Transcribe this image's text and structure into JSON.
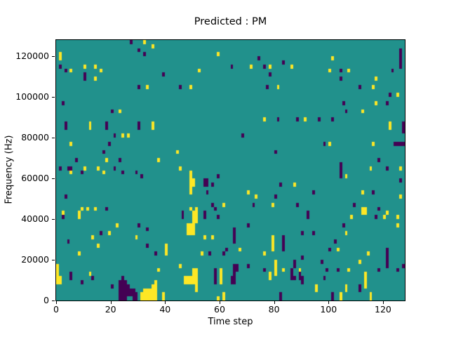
{
  "figure": {
    "title": "Predicted : PM",
    "xlabel": "Time step",
    "ylabel": "Frequency (Hz)"
  },
  "chart_data": {
    "type": "heatmap",
    "title": "Predicted : PM",
    "xlabel": "Time step",
    "ylabel": "Frequency (Hz)",
    "x_range": [
      0,
      128
    ],
    "y_range_hz": [
      0,
      128000
    ],
    "x_ticks": [
      0,
      20,
      40,
      60,
      80,
      100,
      120
    ],
    "y_ticks": [
      0,
      20000,
      40000,
      60000,
      80000,
      100000,
      120000
    ],
    "grid_cols": 128,
    "grid_rows": 64,
    "hz_per_row": 2000,
    "grid": false,
    "legend": "none",
    "colormap": "viridis",
    "colors": {
      "mid": "#21918c",
      "high": "#fde725",
      "low": "#440154"
    },
    "value_meaning": {
      "low": 0,
      "mid": 0.5,
      "high": 1
    },
    "cells_high": [
      [
        1,
        60
      ],
      [
        1,
        59
      ],
      [
        10,
        57
      ],
      [
        14,
        57
      ],
      [
        5,
        56
      ],
      [
        16,
        56
      ],
      [
        14,
        54
      ],
      [
        23,
        46
      ],
      [
        12,
        43
      ],
      [
        32,
        63
      ],
      [
        35,
        62
      ],
      [
        59,
        60
      ],
      [
        52,
        56
      ],
      [
        33,
        52
      ],
      [
        49,
        52
      ],
      [
        35,
        43
      ],
      [
        71,
        57
      ],
      [
        78,
        57
      ],
      [
        86,
        57
      ],
      [
        81,
        52
      ],
      [
        76,
        44
      ],
      [
        91,
        44
      ],
      [
        101,
        59
      ],
      [
        100,
        56
      ],
      [
        107,
        56
      ],
      [
        117,
        54
      ],
      [
        116,
        52
      ],
      [
        125,
        50
      ],
      [
        117,
        48
      ],
      [
        112,
        46
      ],
      [
        122,
        43
      ],
      [
        12,
        42
      ],
      [
        24,
        40
      ],
      [
        26,
        40
      ],
      [
        5,
        38
      ],
      [
        18,
        34
      ],
      [
        10,
        32
      ],
      [
        15,
        32
      ],
      [
        5,
        31
      ],
      [
        17,
        31
      ],
      [
        9,
        22
      ],
      [
        11,
        22
      ],
      [
        14,
        22
      ],
      [
        35,
        42
      ],
      [
        44,
        36
      ],
      [
        37,
        34
      ],
      [
        45,
        32
      ],
      [
        49,
        31
      ],
      [
        49,
        30
      ],
      [
        49,
        29
      ],
      [
        50,
        29
      ],
      [
        49,
        28
      ],
      [
        50,
        28
      ],
      [
        49,
        27
      ],
      [
        49,
        26
      ],
      [
        61,
        23
      ],
      [
        49,
        22
      ],
      [
        51,
        22
      ],
      [
        87,
        28
      ],
      [
        70,
        26
      ],
      [
        73,
        25
      ],
      [
        79,
        23
      ],
      [
        122,
        42
      ],
      [
        100,
        38
      ],
      [
        116,
        38
      ],
      [
        115,
        32
      ],
      [
        126,
        32
      ],
      [
        106,
        30
      ],
      [
        112,
        26
      ],
      [
        126,
        25
      ],
      [
        112,
        22
      ],
      [
        113,
        22
      ],
      [
        2,
        21
      ],
      [
        8,
        21
      ],
      [
        50,
        21
      ],
      [
        51,
        21
      ],
      [
        112,
        21
      ],
      [
        113,
        21
      ],
      [
        121,
        21
      ],
      [
        8,
        20
      ],
      [
        50,
        20
      ],
      [
        51,
        20
      ],
      [
        108,
        20
      ],
      [
        120,
        20
      ],
      [
        125,
        20
      ],
      [
        50,
        19
      ],
      [
        51,
        19
      ],
      [
        22,
        18
      ],
      [
        48,
        18
      ],
      [
        49,
        18
      ],
      [
        50,
        18
      ],
      [
        125,
        18
      ],
      [
        48,
        17
      ],
      [
        49,
        17
      ],
      [
        50,
        17
      ],
      [
        19,
        16
      ],
      [
        48,
        16
      ],
      [
        49,
        16
      ],
      [
        50,
        16
      ],
      [
        106,
        16
      ],
      [
        13,
        15
      ],
      [
        29,
        15
      ],
      [
        54,
        15
      ],
      [
        57,
        15
      ],
      [
        79,
        15
      ],
      [
        79,
        14
      ],
      [
        15,
        13
      ],
      [
        40,
        13
      ],
      [
        79,
        13
      ],
      [
        40,
        12
      ],
      [
        67,
        12
      ],
      [
        79,
        12
      ],
      [
        103,
        12
      ],
      [
        8,
        11
      ],
      [
        40,
        11
      ],
      [
        53,
        11
      ],
      [
        76,
        11
      ],
      [
        114,
        11
      ],
      [
        80,
        9
      ],
      [
        111,
        9
      ],
      [
        0,
        8
      ],
      [
        45,
        8
      ],
      [
        80,
        8
      ],
      [
        0,
        7
      ],
      [
        37,
        7
      ],
      [
        50,
        7
      ],
      [
        51,
        7
      ],
      [
        60,
        7
      ],
      [
        80,
        7
      ],
      [
        83,
        7
      ],
      [
        89,
        7
      ],
      [
        107,
        7
      ],
      [
        0,
        6
      ],
      [
        12,
        6
      ],
      [
        50,
        6
      ],
      [
        51,
        6
      ],
      [
        60,
        6
      ],
      [
        78,
        6
      ],
      [
        80,
        6
      ],
      [
        113,
        6
      ],
      [
        0,
        5
      ],
      [
        1,
        5
      ],
      [
        47,
        5
      ],
      [
        48,
        5
      ],
      [
        49,
        5
      ],
      [
        50,
        5
      ],
      [
        51,
        5
      ],
      [
        60,
        5
      ],
      [
        78,
        5
      ],
      [
        113,
        5
      ],
      [
        0,
        4
      ],
      [
        1,
        4
      ],
      [
        36,
        4
      ],
      [
        47,
        4
      ],
      [
        48,
        4
      ],
      [
        49,
        4
      ],
      [
        50,
        4
      ],
      [
        51,
        4
      ],
      [
        60,
        4
      ],
      [
        113,
        4
      ],
      [
        35,
        3
      ],
      [
        36,
        3
      ],
      [
        51,
        3
      ],
      [
        95,
        3
      ],
      [
        106,
        3
      ],
      [
        113,
        3
      ],
      [
        32,
        2
      ],
      [
        33,
        2
      ],
      [
        34,
        2
      ],
      [
        35,
        2
      ],
      [
        36,
        2
      ],
      [
        51,
        2
      ],
      [
        95,
        2
      ],
      [
        106,
        2
      ],
      [
        31,
        1
      ],
      [
        32,
        1
      ],
      [
        33,
        1
      ],
      [
        34,
        1
      ],
      [
        35,
        1
      ],
      [
        36,
        1
      ],
      [
        39,
        1
      ],
      [
        61,
        1
      ],
      [
        104,
        1
      ],
      [
        115,
        1
      ],
      [
        31,
        0
      ],
      [
        32,
        0
      ],
      [
        33,
        0
      ],
      [
        34,
        0
      ],
      [
        35,
        0
      ],
      [
        36,
        0
      ],
      [
        39,
        0
      ],
      [
        59,
        0
      ],
      [
        61,
        0
      ],
      [
        104,
        0
      ],
      [
        115,
        0
      ]
    ],
    "cells_low": [
      [
        27,
        63
      ],
      [
        30,
        61
      ],
      [
        1,
        57
      ],
      [
        3,
        56
      ],
      [
        10,
        55
      ],
      [
        10,
        54
      ],
      [
        30,
        52
      ],
      [
        2,
        48
      ],
      [
        20,
        46
      ],
      [
        3,
        43
      ],
      [
        18,
        43
      ],
      [
        30,
        43
      ],
      [
        32,
        60
      ],
      [
        39,
        55
      ],
      [
        45,
        52
      ],
      [
        74,
        59
      ],
      [
        64,
        57
      ],
      [
        76,
        57
      ],
      [
        83,
        58
      ],
      [
        78,
        55
      ],
      [
        77,
        52
      ],
      [
        81,
        44
      ],
      [
        88,
        44
      ],
      [
        126,
        61
      ],
      [
        126,
        60
      ],
      [
        126,
        59
      ],
      [
        126,
        58
      ],
      [
        126,
        57
      ],
      [
        104,
        56
      ],
      [
        123,
        56
      ],
      [
        104,
        54
      ],
      [
        111,
        52
      ],
      [
        122,
        50
      ],
      [
        105,
        48
      ],
      [
        121,
        48
      ],
      [
        106,
        46
      ],
      [
        96,
        44
      ],
      [
        101,
        44
      ],
      [
        127,
        43
      ],
      [
        3,
        42
      ],
      [
        18,
        42
      ],
      [
        30,
        42
      ],
      [
        21,
        40
      ],
      [
        19,
        38
      ],
      [
        17,
        36
      ],
      [
        7,
        34
      ],
      [
        23,
        34
      ],
      [
        1,
        32
      ],
      [
        4,
        32
      ],
      [
        5,
        32
      ],
      [
        21,
        32
      ],
      [
        9,
        31
      ],
      [
        24,
        31
      ],
      [
        29,
        31
      ],
      [
        3,
        25
      ],
      [
        18,
        22
      ],
      [
        31,
        30
      ],
      [
        59,
        30
      ],
      [
        54,
        29
      ],
      [
        55,
        29
      ],
      [
        54,
        28
      ],
      [
        55,
        28
      ],
      [
        57,
        28
      ],
      [
        55,
        26
      ],
      [
        57,
        23
      ],
      [
        58,
        22
      ],
      [
        68,
        40
      ],
      [
        80,
        36
      ],
      [
        82,
        28
      ],
      [
        94,
        26
      ],
      [
        80,
        25
      ],
      [
        72,
        23
      ],
      [
        88,
        23
      ],
      [
        127,
        42
      ],
      [
        127,
        41
      ],
      [
        98,
        38
      ],
      [
        124,
        38
      ],
      [
        125,
        38
      ],
      [
        126,
        38
      ],
      [
        127,
        38
      ],
      [
        118,
        34
      ],
      [
        104,
        33
      ],
      [
        104,
        32
      ],
      [
        104,
        31
      ],
      [
        104,
        30
      ],
      [
        121,
        32
      ],
      [
        126,
        29
      ],
      [
        116,
        26
      ],
      [
        109,
        23
      ],
      [
        118,
        22
      ],
      [
        46,
        21
      ],
      [
        54,
        21
      ],
      [
        92,
        21
      ],
      [
        2,
        20
      ],
      [
        46,
        20
      ],
      [
        54,
        20
      ],
      [
        59,
        20
      ],
      [
        92,
        20
      ],
      [
        117,
        20
      ],
      [
        30,
        18
      ],
      [
        70,
        18
      ],
      [
        105,
        18
      ],
      [
        33,
        17
      ],
      [
        65,
        17
      ],
      [
        16,
        16
      ],
      [
        65,
        16
      ],
      [
        90,
        16
      ],
      [
        94,
        16
      ],
      [
        65,
        15
      ],
      [
        83,
        15
      ],
      [
        4,
        14
      ],
      [
        65,
        14
      ],
      [
        83,
        14
      ],
      [
        102,
        14
      ],
      [
        33,
        13
      ],
      [
        83,
        13
      ],
      [
        62,
        12
      ],
      [
        83,
        12
      ],
      [
        100,
        12
      ],
      [
        121,
        12
      ],
      [
        36,
        11
      ],
      [
        56,
        11
      ],
      [
        61,
        11
      ],
      [
        121,
        11
      ],
      [
        90,
        10
      ],
      [
        121,
        10
      ],
      [
        87,
        9
      ],
      [
        97,
        9
      ],
      [
        121,
        9
      ],
      [
        65,
        8
      ],
      [
        66,
        8
      ],
      [
        70,
        8
      ],
      [
        87,
        8
      ],
      [
        121,
        8
      ],
      [
        127,
        8
      ],
      [
        58,
        7
      ],
      [
        65,
        7
      ],
      [
        66,
        7
      ],
      [
        76,
        7
      ],
      [
        86,
        7
      ],
      [
        99,
        7
      ],
      [
        103,
        7
      ],
      [
        118,
        7
      ],
      [
        125,
        7
      ],
      [
        5,
        6
      ],
      [
        58,
        6
      ],
      [
        65,
        6
      ],
      [
        86,
        6
      ],
      [
        89,
        6
      ],
      [
        5,
        5
      ],
      [
        13,
        5
      ],
      [
        24,
        5
      ],
      [
        58,
        5
      ],
      [
        64,
        5
      ],
      [
        65,
        5
      ],
      [
        86,
        5
      ],
      [
        87,
        5
      ],
      [
        89,
        5
      ],
      [
        90,
        5
      ],
      [
        98,
        5
      ],
      [
        9,
        4
      ],
      [
        23,
        4
      ],
      [
        24,
        4
      ],
      [
        25,
        4
      ],
      [
        58,
        4
      ],
      [
        64,
        4
      ],
      [
        65,
        4
      ],
      [
        90,
        4
      ],
      [
        20,
        3
      ],
      [
        23,
        3
      ],
      [
        24,
        3
      ],
      [
        25,
        3
      ],
      [
        26,
        3
      ],
      [
        111,
        3
      ],
      [
        23,
        2
      ],
      [
        24,
        2
      ],
      [
        25,
        2
      ],
      [
        26,
        2
      ],
      [
        27,
        2
      ],
      [
        28,
        2
      ],
      [
        111,
        2
      ],
      [
        23,
        1
      ],
      [
        24,
        1
      ],
      [
        25,
        1
      ],
      [
        26,
        1
      ],
      [
        27,
        1
      ],
      [
        28,
        1
      ],
      [
        29,
        1
      ],
      [
        82,
        1
      ],
      [
        101,
        1
      ],
      [
        23,
        0
      ],
      [
        24,
        0
      ],
      [
        25,
        0
      ],
      [
        28,
        0
      ],
      [
        29,
        0
      ],
      [
        82,
        0
      ],
      [
        101,
        0
      ]
    ]
  }
}
